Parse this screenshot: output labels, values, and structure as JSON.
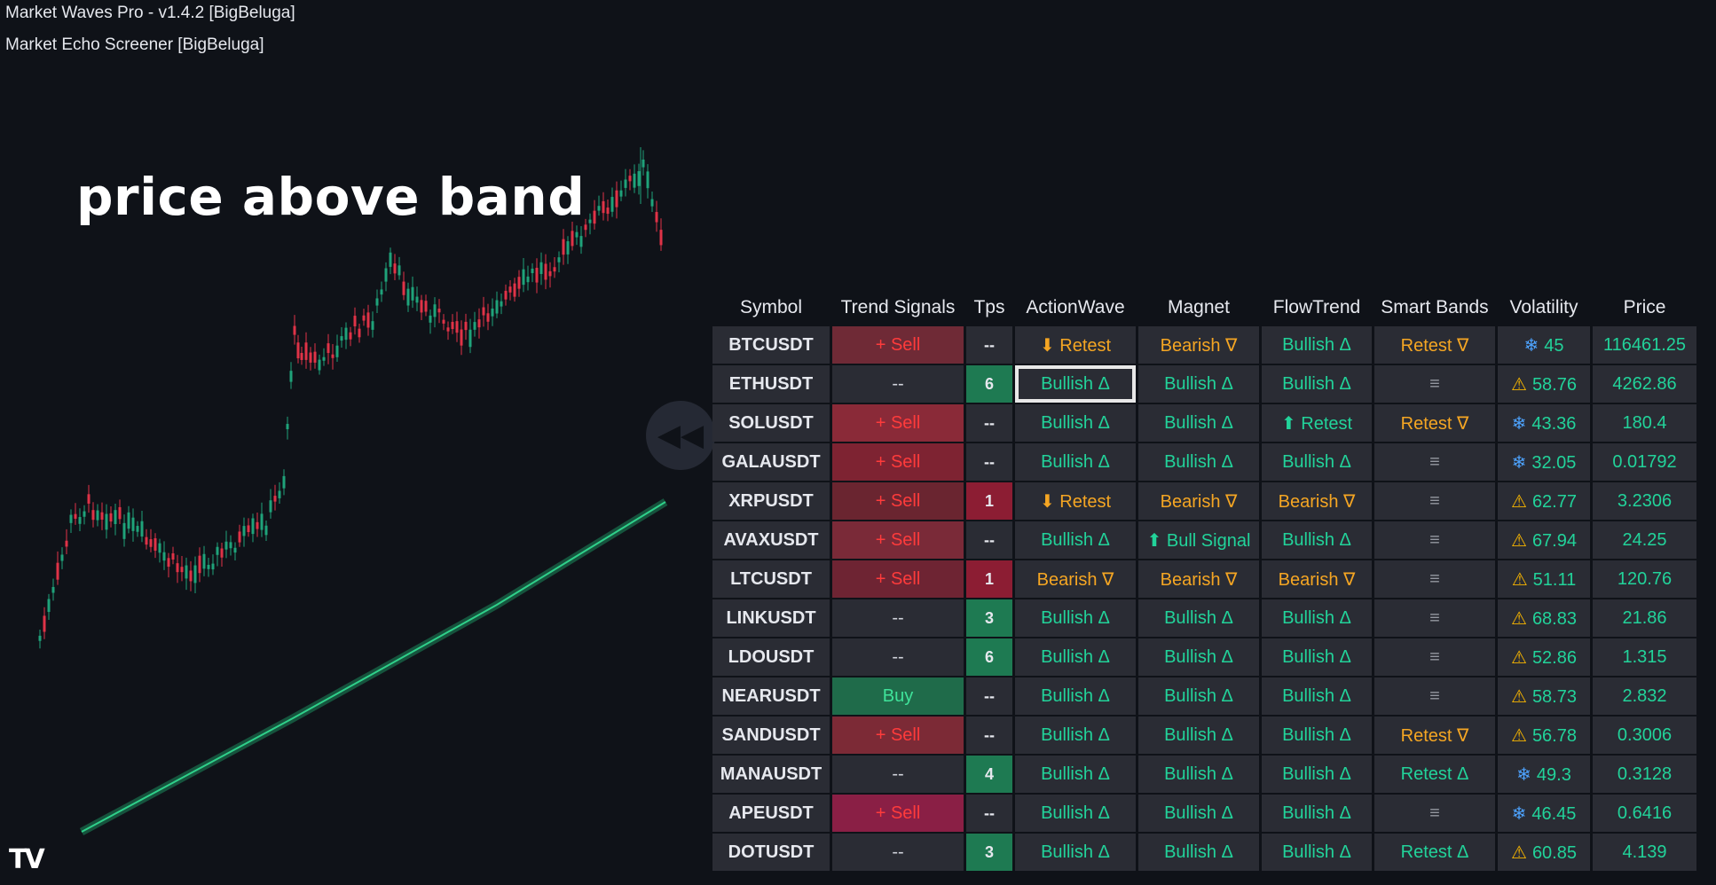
{
  "header": {
    "indicator1": "Market Waves Pro - v1.4.2 [BigBeluga]",
    "indicator2": "Market Echo Screener [BigBeluga]"
  },
  "chart": {
    "annotation": "price above band",
    "logo": "TV"
  },
  "colors": {
    "bullish": "#22d39a",
    "bearish": "#f5a623",
    "sell": "#ff3b3b",
    "band": "#1fa36a"
  },
  "screener": {
    "columns": [
      "Symbol",
      "Trend Signals",
      "Tps",
      "ActionWave",
      "Magnet",
      "FlowTrend",
      "Smart Bands",
      "Volatility",
      "Price"
    ],
    "rows": [
      {
        "symbol": "BTCUSDT",
        "trend": "+ Sell",
        "tps": "--",
        "actionwave": "⬇ Retest",
        "magnet": "Bearish ∇",
        "flowtrend": "Bullish Δ",
        "smartbands": "Retest ∇",
        "vol_icon": "❄",
        "volatility": "45",
        "price": "116461.25"
      },
      {
        "symbol": "ETHUSDT",
        "trend": "--",
        "tps": "6",
        "actionwave": "Bullish Δ",
        "magnet": "Bullish Δ",
        "flowtrend": "Bullish Δ",
        "smartbands": "≡",
        "vol_icon": "⚠",
        "volatility": "58.76",
        "price": "4262.86"
      },
      {
        "symbol": "SOLUSDT",
        "trend": "+ Sell",
        "tps": "--",
        "actionwave": "Bullish Δ",
        "magnet": "Bullish Δ",
        "flowtrend": "⬆ Retest",
        "smartbands": "Retest ∇",
        "vol_icon": "❄",
        "volatility": "43.36",
        "price": "180.4"
      },
      {
        "symbol": "GALAUSDT",
        "trend": "+ Sell",
        "tps": "--",
        "actionwave": "Bullish Δ",
        "magnet": "Bullish Δ",
        "flowtrend": "Bullish Δ",
        "smartbands": "≡",
        "vol_icon": "❄",
        "volatility": "32.05",
        "price": "0.01792"
      },
      {
        "symbol": "XRPUSDT",
        "trend": "+ Sell",
        "tps": "1",
        "actionwave": "⬇ Retest",
        "magnet": "Bearish ∇",
        "flowtrend": "Bearish ∇",
        "smartbands": "≡",
        "vol_icon": "⚠",
        "volatility": "62.77",
        "price": "3.2306"
      },
      {
        "symbol": "AVAXUSDT",
        "trend": "+ Sell",
        "tps": "--",
        "actionwave": "Bullish Δ",
        "magnet": "⬆ Bull Signal",
        "flowtrend": "Bullish Δ",
        "smartbands": "≡",
        "vol_icon": "⚠",
        "volatility": "67.94",
        "price": "24.25"
      },
      {
        "symbol": "LTCUSDT",
        "trend": "+ Sell",
        "tps": "1",
        "actionwave": "Bearish ∇",
        "magnet": "Bearish ∇",
        "flowtrend": "Bearish ∇",
        "smartbands": "≡",
        "vol_icon": "⚠",
        "volatility": "51.11",
        "price": "120.76"
      },
      {
        "symbol": "LINKUSDT",
        "trend": "--",
        "tps": "3",
        "actionwave": "Bullish Δ",
        "magnet": "Bullish Δ",
        "flowtrend": "Bullish Δ",
        "smartbands": "≡",
        "vol_icon": "⚠",
        "volatility": "68.83",
        "price": "21.86"
      },
      {
        "symbol": "LDOUSDT",
        "trend": "--",
        "tps": "6",
        "actionwave": "Bullish Δ",
        "magnet": "Bullish Δ",
        "flowtrend": "Bullish Δ",
        "smartbands": "≡",
        "vol_icon": "⚠",
        "volatility": "52.86",
        "price": "1.315"
      },
      {
        "symbol": "NEARUSDT",
        "trend": "Buy",
        "tps": "--",
        "actionwave": "Bullish Δ",
        "magnet": "Bullish Δ",
        "flowtrend": "Bullish Δ",
        "smartbands": "≡",
        "vol_icon": "⚠",
        "volatility": "58.73",
        "price": "2.832"
      },
      {
        "symbol": "SANDUSDT",
        "trend": "+ Sell",
        "tps": "--",
        "actionwave": "Bullish Δ",
        "magnet": "Bullish Δ",
        "flowtrend": "Bullish Δ",
        "smartbands": "Retest ∇",
        "vol_icon": "⚠",
        "volatility": "56.78",
        "price": "0.3006"
      },
      {
        "symbol": "MANAUSDT",
        "trend": "--",
        "tps": "4",
        "actionwave": "Bullish Δ",
        "magnet": "Bullish Δ",
        "flowtrend": "Bullish Δ",
        "smartbands": "Retest Δ",
        "vol_icon": "❄",
        "volatility": "49.3",
        "price": "0.3128"
      },
      {
        "symbol": "APEUSDT",
        "trend": "+ Sell",
        "tps": "--",
        "actionwave": "Bullish Δ",
        "magnet": "Bullish Δ",
        "flowtrend": "Bullish Δ",
        "smartbands": "≡",
        "vol_icon": "❄",
        "volatility": "46.45",
        "price": "0.6416"
      },
      {
        "symbol": "DOTUSDT",
        "trend": "--",
        "tps": "3",
        "actionwave": "Bullish Δ",
        "magnet": "Bullish Δ",
        "flowtrend": "Bullish Δ",
        "smartbands": "Retest Δ",
        "vol_icon": "⚠",
        "volatility": "60.85",
        "price": "4.139"
      }
    ]
  }
}
